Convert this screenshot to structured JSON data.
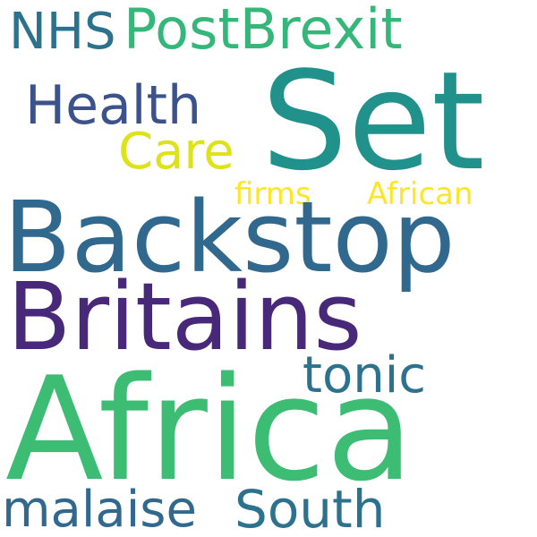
{
  "word_cloud": {
    "words": [
      {
        "text": "NHS",
        "color": "#2c728e"
      },
      {
        "text": "PostBrexit",
        "color": "#35b779"
      },
      {
        "text": "Set",
        "color": "#21918c"
      },
      {
        "text": "Health",
        "color": "#3b528b"
      },
      {
        "text": "Care",
        "color": "#dde318"
      },
      {
        "text": "firms",
        "color": "#fde725"
      },
      {
        "text": "African",
        "color": "#fde725"
      },
      {
        "text": "Backstop",
        "color": "#31688e"
      },
      {
        "text": "Britains",
        "color": "#482878"
      },
      {
        "text": "tonic",
        "color": "#2c728e"
      },
      {
        "text": "Africa",
        "color": "#3dbc74"
      },
      {
        "text": "malaise",
        "color": "#31688e"
      },
      {
        "text": "South",
        "color": "#2c728e"
      }
    ]
  }
}
